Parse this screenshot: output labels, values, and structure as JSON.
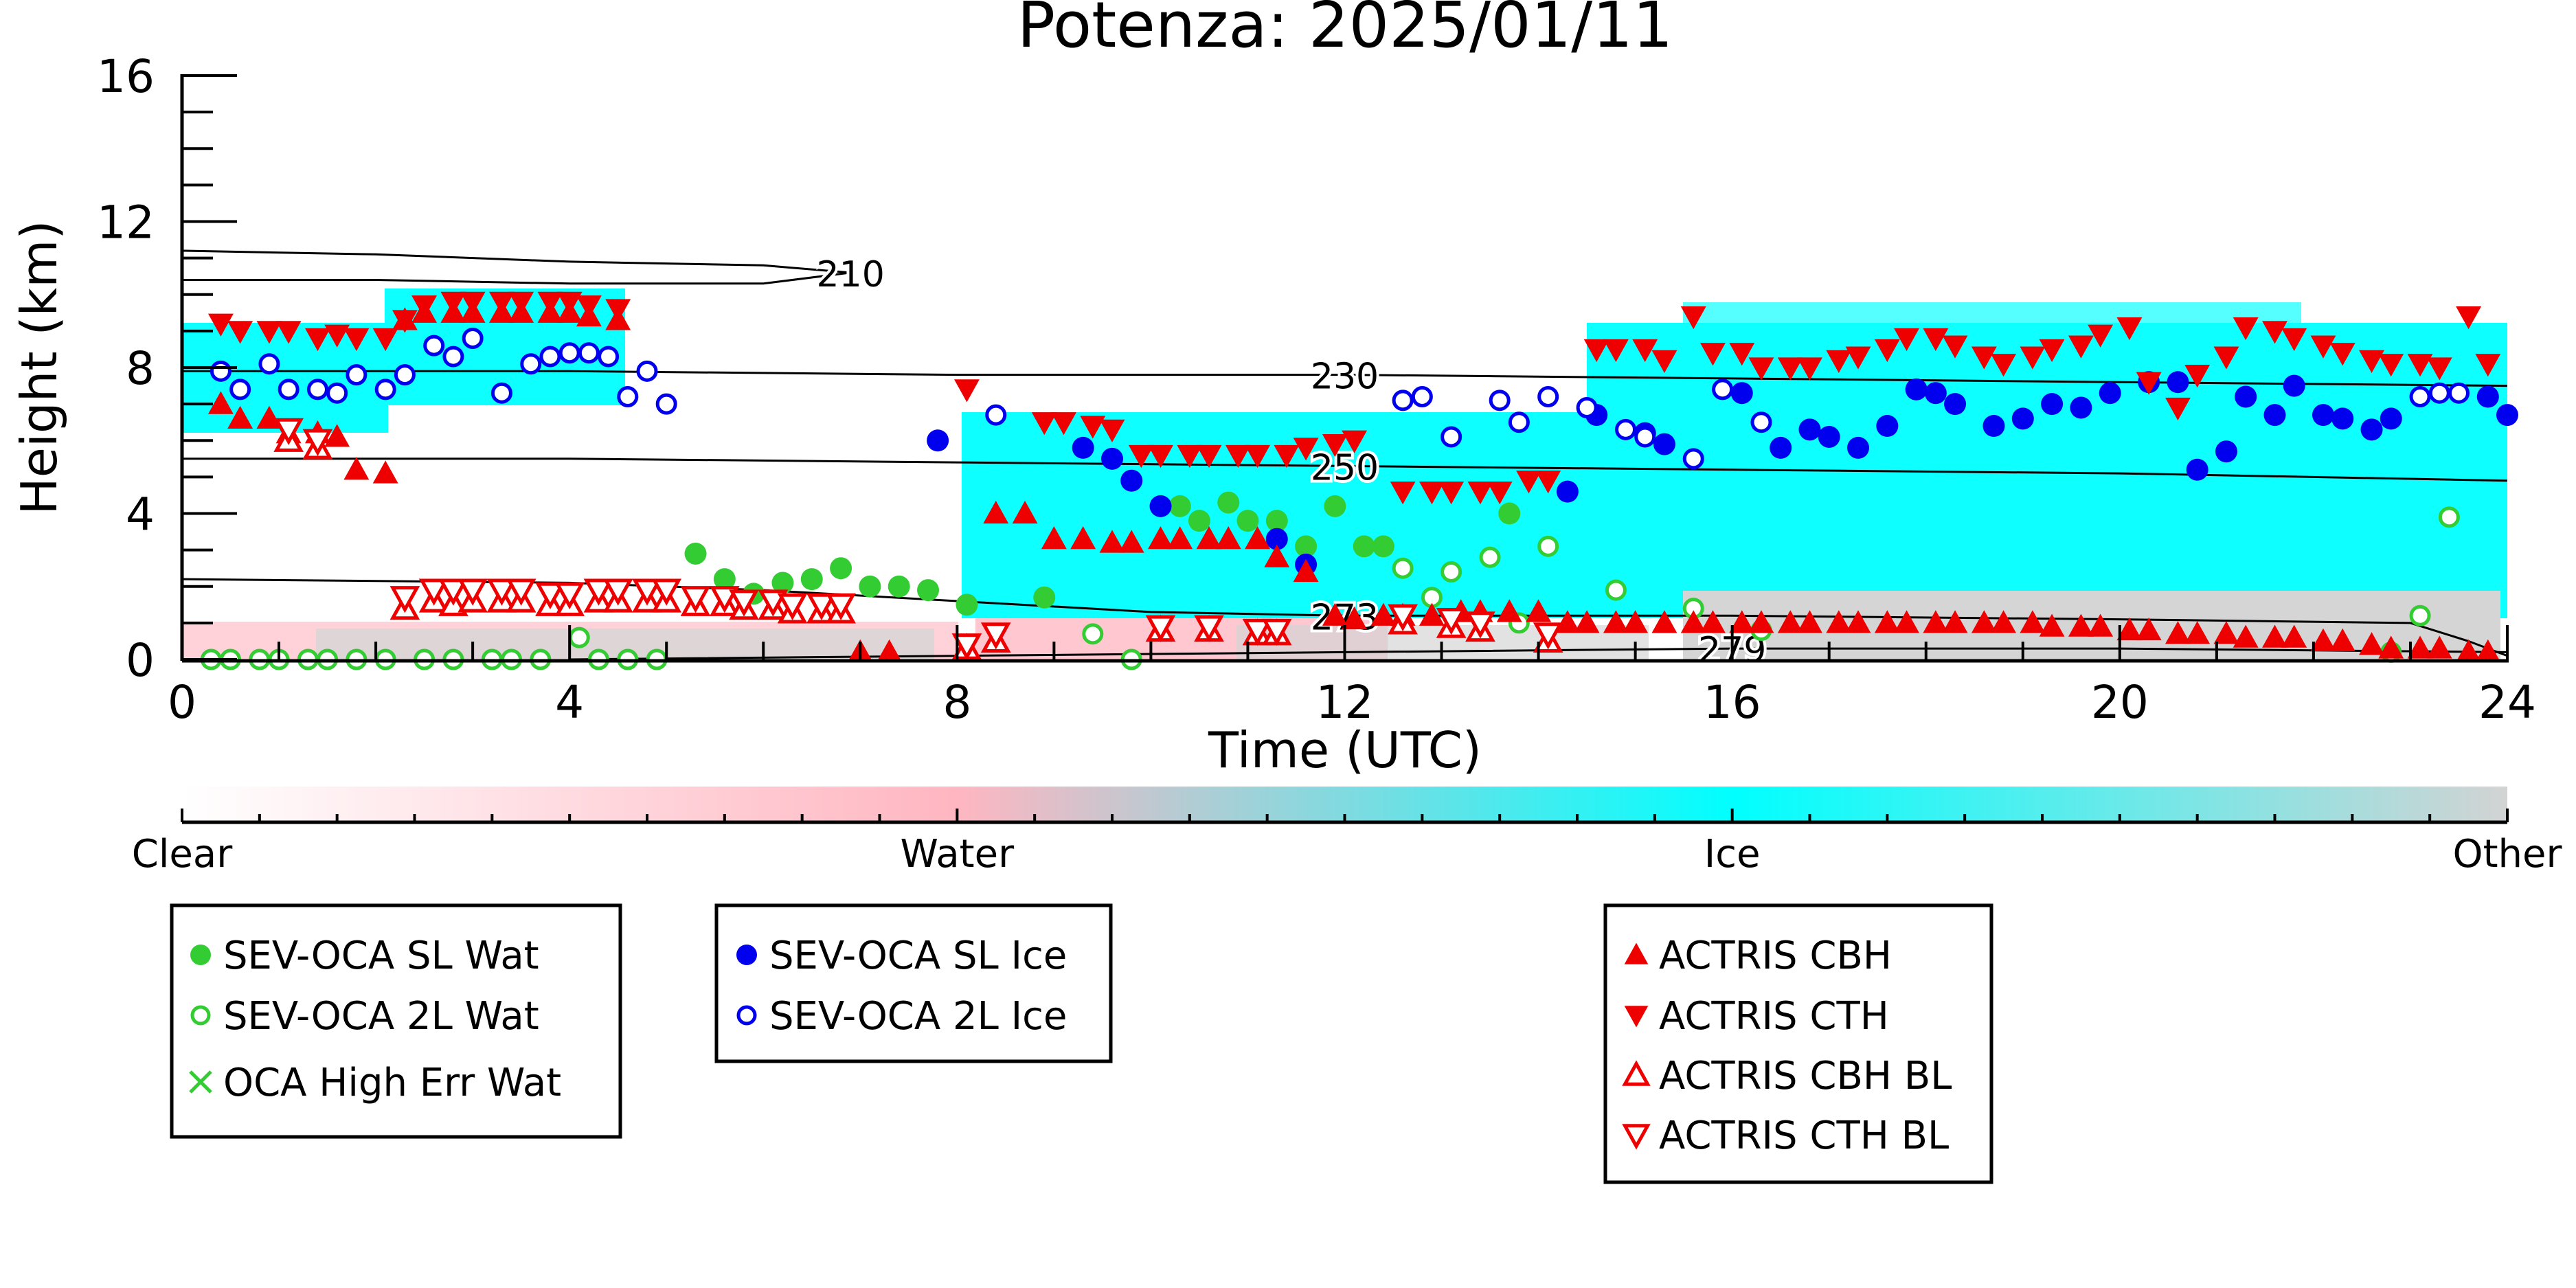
{
  "chart_data": {
    "type": "scatter",
    "title": "Potenza: 2025/01/11",
    "xlabel": "Time (UTC)",
    "ylabel": "Height (km)",
    "xlim": [
      0,
      24
    ],
    "ylim": [
      0,
      16
    ],
    "xticks": [
      0,
      4,
      8,
      12,
      16,
      20,
      24
    ],
    "yticks": [
      0,
      4,
      8,
      12,
      16
    ],
    "colorbar": {
      "labels": [
        "Clear",
        "Water",
        "Ice",
        "Other"
      ],
      "colors": [
        "#ffffff",
        "#ffb6c1",
        "#00ffff",
        "#d3d3d3"
      ]
    },
    "contours": [
      {
        "label": "210",
        "points": [
          [
            0,
            11.2
          ],
          [
            2,
            11.1
          ],
          [
            4,
            10.9
          ],
          [
            6,
            10.8
          ],
          [
            6.9,
            10.6
          ],
          [
            6,
            10.3
          ],
          [
            4,
            10.3
          ],
          [
            2,
            10.4
          ],
          [
            0,
            10.4
          ]
        ]
      },
      {
        "label": "230",
        "points": [
          [
            0,
            7.9
          ],
          [
            4,
            7.9
          ],
          [
            8,
            7.8
          ],
          [
            12,
            7.8
          ],
          [
            16,
            7.7
          ],
          [
            20,
            7.6
          ],
          [
            24,
            7.5
          ]
        ]
      },
      {
        "label": "250",
        "points": [
          [
            0,
            5.5
          ],
          [
            4,
            5.5
          ],
          [
            8,
            5.4
          ],
          [
            12,
            5.3
          ],
          [
            16,
            5.2
          ],
          [
            20,
            5.1
          ],
          [
            24,
            4.9
          ]
        ]
      },
      {
        "label": "273",
        "points": [
          [
            0,
            2.2
          ],
          [
            4,
            2.1
          ],
          [
            6,
            1.9
          ],
          [
            8,
            1.6
          ],
          [
            10,
            1.3
          ],
          [
            12,
            1.2
          ],
          [
            16,
            1.2
          ],
          [
            20,
            1.1
          ],
          [
            23,
            1.0
          ],
          [
            23.6,
            0.5
          ],
          [
            24,
            0.1
          ]
        ]
      },
      {
        "label": "279",
        "points": [
          [
            4,
            0.0
          ],
          [
            8,
            0.1
          ],
          [
            12,
            0.2
          ],
          [
            16,
            0.3
          ],
          [
            20,
            0.3
          ],
          [
            24,
            0.2
          ]
        ]
      }
    ],
    "series": [
      {
        "name": "SEV-OCA SL Wat",
        "marker": "filled-circle",
        "color": "#33cc33",
        "x": [
          5.3,
          5.6,
          5.9,
          6.2,
          6.5,
          6.8,
          7.1,
          7.4,
          7.7,
          8.1,
          8.9,
          10.3,
          10.5,
          10.8,
          11.0,
          11.3,
          11.6,
          11.9,
          12.2,
          12.4,
          13.7
        ],
        "y": [
          2.9,
          2.2,
          1.8,
          2.1,
          2.2,
          2.5,
          2.0,
          2.0,
          1.9,
          1.5,
          1.7,
          4.2,
          3.8,
          4.3,
          3.8,
          3.8,
          3.1,
          4.2,
          3.1,
          3.1,
          4.0
        ]
      },
      {
        "name": "SEV-OCA 2L Wat",
        "marker": "open-circle",
        "color": "#33cc33",
        "x": [
          0.3,
          0.5,
          0.8,
          1.0,
          1.3,
          1.5,
          1.8,
          2.1,
          2.5,
          2.8,
          3.2,
          3.4,
          3.7,
          4.1,
          4.3,
          4.6,
          4.9,
          9.4,
          9.8,
          12.6,
          12.9,
          13.1,
          13.5,
          13.8,
          14.1,
          14.8,
          15.6,
          16.3,
          22.8,
          23.1,
          23.4
        ],
        "y": [
          0,
          0,
          0,
          0,
          0,
          0,
          0,
          0,
          0,
          0,
          0,
          0,
          0,
          0.6,
          0,
          0,
          0,
          0.7,
          0,
          2.5,
          1.7,
          2.4,
          2.8,
          1.0,
          3.1,
          1.9,
          1.4,
          0.8,
          0.2,
          1.2,
          3.9
        ]
      },
      {
        "name": "OCA High Err Wat",
        "marker": "x",
        "color": "#33cc33",
        "x": [],
        "y": []
      },
      {
        "name": "SEV-OCA SL Ice",
        "marker": "filled-circle",
        "color": "#0000ee",
        "x": [
          7.8,
          9.3,
          9.6,
          9.8,
          10.1,
          11.3,
          11.6,
          14.3,
          14.6,
          15.1,
          15.3,
          16.1,
          16.5,
          16.8,
          17.0,
          17.3,
          17.6,
          17.9,
          18.1,
          18.3,
          18.7,
          19.0,
          19.3,
          19.6,
          19.9,
          20.3,
          20.6,
          20.8,
          21.1,
          21.3,
          21.6,
          21.8,
          22.1,
          22.3,
          22.6,
          22.8,
          23.8,
          24.0
        ],
        "y": [
          6.0,
          5.8,
          5.5,
          4.9,
          4.2,
          3.3,
          2.6,
          4.6,
          6.7,
          6.2,
          5.9,
          7.3,
          5.8,
          6.3,
          6.1,
          5.8,
          6.4,
          7.4,
          7.3,
          7.0,
          6.4,
          6.6,
          7.0,
          6.9,
          7.3,
          7.6,
          7.6,
          5.2,
          5.7,
          7.2,
          6.7,
          7.5,
          6.7,
          6.6,
          6.3,
          6.6,
          7.2,
          6.7
        ]
      },
      {
        "name": "SEV-OCA 2L Ice",
        "marker": "open-circle",
        "color": "#0000ee",
        "x": [
          0.4,
          0.6,
          0.9,
          1.1,
          1.4,
          1.6,
          1.8,
          2.1,
          2.3,
          2.6,
          2.8,
          3.0,
          3.3,
          3.6,
          3.8,
          4.0,
          4.2,
          4.4,
          4.6,
          4.8,
          5.0,
          8.4,
          12.6,
          12.8,
          13.1,
          13.6,
          13.8,
          14.1,
          14.5,
          14.9,
          15.1,
          15.6,
          15.9,
          16.3,
          23.1,
          23.3,
          23.5
        ],
        "y": [
          7.9,
          7.4,
          8.1,
          7.4,
          7.4,
          7.3,
          7.8,
          7.4,
          7.8,
          8.6,
          8.3,
          8.8,
          7.3,
          8.1,
          8.3,
          8.4,
          8.4,
          8.3,
          7.2,
          7.9,
          7.0,
          6.7,
          7.1,
          7.2,
          6.1,
          7.1,
          6.5,
          7.2,
          6.9,
          6.3,
          6.1,
          5.5,
          7.4,
          6.5,
          7.2,
          7.3,
          7.3
        ]
      },
      {
        "name": "ACTRIS CBH",
        "marker": "triangle-up",
        "color": "#ee0000",
        "x": [
          0.4,
          0.6,
          0.9,
          1.1,
          1.4,
          1.6,
          1.8,
          2.1,
          2.3,
          2.5,
          2.8,
          3.0,
          3.3,
          3.5,
          3.8,
          4.0,
          4.2,
          4.5,
          7.0,
          7.3,
          8.4,
          8.7,
          9.0,
          9.3,
          9.6,
          9.8,
          10.1,
          10.3,
          10.6,
          10.8,
          11.1,
          11.3,
          11.6,
          11.9,
          12.1,
          12.4,
          12.6,
          12.9,
          13.2,
          13.4,
          13.7,
          14.0,
          14.3,
          14.5,
          14.8,
          15.0,
          15.3,
          15.6,
          15.8,
          16.1,
          16.3,
          16.6,
          16.8,
          17.1,
          17.3,
          17.6,
          17.8,
          18.1,
          18.3,
          18.6,
          18.8,
          19.1,
          19.3,
          19.6,
          19.8,
          20.1,
          20.3,
          20.6,
          20.8,
          21.1,
          21.3,
          21.6,
          21.8,
          22.1,
          22.3,
          22.6,
          22.8,
          23.1,
          23.3,
          23.6,
          23.8
        ],
        "y": [
          7.0,
          6.6,
          6.6,
          6.2,
          6.2,
          6.1,
          5.2,
          5.1,
          9.3,
          9.5,
          9.5,
          9.5,
          9.5,
          9.5,
          9.5,
          9.5,
          9.4,
          9.3,
          0.2,
          0.2,
          4.0,
          4.0,
          3.3,
          3.3,
          3.2,
          3.2,
          3.3,
          3.3,
          3.3,
          3.3,
          3.3,
          2.8,
          2.4,
          1.2,
          1.1,
          1.2,
          1.2,
          1.2,
          1.3,
          1.3,
          1.3,
          1.3,
          1.0,
          1.0,
          1.0,
          1.0,
          1.0,
          1.0,
          1.0,
          1.0,
          1.0,
          1.0,
          1.0,
          1.0,
          1.0,
          1.0,
          1.0,
          1.0,
          1.0,
          1.0,
          1.0,
          1.0,
          0.9,
          0.9,
          0.9,
          0.8,
          0.8,
          0.7,
          0.7,
          0.7,
          0.6,
          0.6,
          0.6,
          0.5,
          0.5,
          0.4,
          0.3,
          0.3,
          0.3,
          0.2,
          0.2
        ]
      },
      {
        "name": "ACTRIS CTH",
        "marker": "triangle-down",
        "color": "#ee0000",
        "x": [
          0.4,
          0.6,
          0.9,
          1.1,
          1.4,
          1.6,
          1.8,
          2.1,
          2.3,
          2.5,
          2.8,
          3.0,
          3.3,
          3.5,
          3.8,
          4.0,
          4.2,
          4.5,
          8.1,
          8.9,
          9.1,
          9.4,
          9.6,
          9.9,
          10.1,
          10.4,
          10.6,
          10.9,
          11.1,
          11.4,
          11.6,
          11.9,
          12.1,
          12.6,
          12.9,
          13.1,
          13.4,
          13.6,
          13.9,
          14.1,
          14.6,
          14.8,
          15.1,
          15.3,
          15.6,
          15.8,
          16.1,
          16.3,
          16.6,
          16.8,
          17.1,
          17.3,
          17.6,
          17.8,
          18.1,
          18.3,
          18.6,
          18.8,
          19.1,
          19.3,
          19.6,
          19.8,
          20.1,
          20.3,
          20.6,
          20.8,
          21.1,
          21.3,
          21.6,
          21.8,
          22.1,
          22.3,
          22.6,
          22.8,
          23.1,
          23.3,
          23.6,
          23.8
        ],
        "y": [
          9.2,
          9.0,
          9.0,
          9.0,
          8.8,
          8.9,
          8.8,
          8.8,
          9.3,
          9.7,
          9.8,
          9.8,
          9.8,
          9.8,
          9.8,
          9.8,
          9.7,
          9.6,
          7.4,
          6.5,
          6.5,
          6.4,
          6.3,
          5.6,
          5.6,
          5.6,
          5.6,
          5.6,
          5.6,
          5.6,
          5.8,
          5.9,
          6.0,
          4.6,
          4.6,
          4.6,
          4.6,
          4.6,
          4.9,
          4.9,
          8.5,
          8.5,
          8.5,
          8.2,
          9.4,
          8.4,
          8.4,
          8.0,
          8.0,
          8.0,
          8.2,
          8.3,
          8.5,
          8.8,
          8.8,
          8.6,
          8.3,
          8.1,
          8.3,
          8.5,
          8.6,
          8.9,
          9.1,
          7.6,
          6.9,
          7.8,
          8.3,
          9.1,
          9.0,
          8.8,
          8.6,
          8.4,
          8.2,
          8.1,
          8.1,
          8.0,
          9.4,
          8.1
        ]
      },
      {
        "name": "ACTRIS CBH BL",
        "marker": "open-triangle-up",
        "color": "#ee0000",
        "x": [
          1.1,
          1.4,
          2.3,
          2.6,
          2.8,
          3.0,
          3.3,
          3.5,
          3.8,
          4.0,
          4.3,
          4.5,
          4.8,
          5.0,
          5.3,
          5.6,
          5.8,
          6.1,
          6.3,
          6.6,
          6.8,
          8.1,
          8.4,
          10.1,
          10.6,
          11.1,
          11.3,
          12.6,
          13.1,
          13.4,
          14.1
        ],
        "y": [
          6.0,
          5.8,
          1.4,
          1.6,
          1.5,
          1.6,
          1.6,
          1.6,
          1.5,
          1.5,
          1.6,
          1.6,
          1.6,
          1.6,
          1.5,
          1.5,
          1.4,
          1.4,
          1.3,
          1.3,
          1.3,
          0.3,
          0.5,
          0.8,
          0.8,
          0.7,
          0.7,
          1.0,
          0.9,
          0.8,
          0.5
        ]
      },
      {
        "name": "ACTRIS CTH BL",
        "marker": "open-triangle-down",
        "color": "#ee0000",
        "x": [
          1.1,
          1.4,
          2.3,
          2.6,
          2.8,
          3.0,
          3.3,
          3.5,
          3.8,
          4.0,
          4.3,
          4.5,
          4.8,
          5.0,
          5.3,
          5.6,
          5.8,
          6.1,
          6.3,
          6.6,
          6.8,
          8.1,
          8.4,
          10.1,
          10.6,
          11.1,
          11.3,
          12.6,
          13.1,
          13.4,
          14.1
        ],
        "y": [
          6.3,
          6.0,
          1.7,
          1.9,
          1.9,
          1.9,
          1.9,
          1.9,
          1.8,
          1.8,
          1.9,
          1.9,
          1.9,
          1.9,
          1.7,
          1.7,
          1.6,
          1.6,
          1.5,
          1.5,
          1.5,
          0.4,
          0.7,
          0.9,
          0.9,
          0.8,
          0.8,
          1.2,
          1.1,
          1.0,
          0.7
        ]
      }
    ]
  }
}
